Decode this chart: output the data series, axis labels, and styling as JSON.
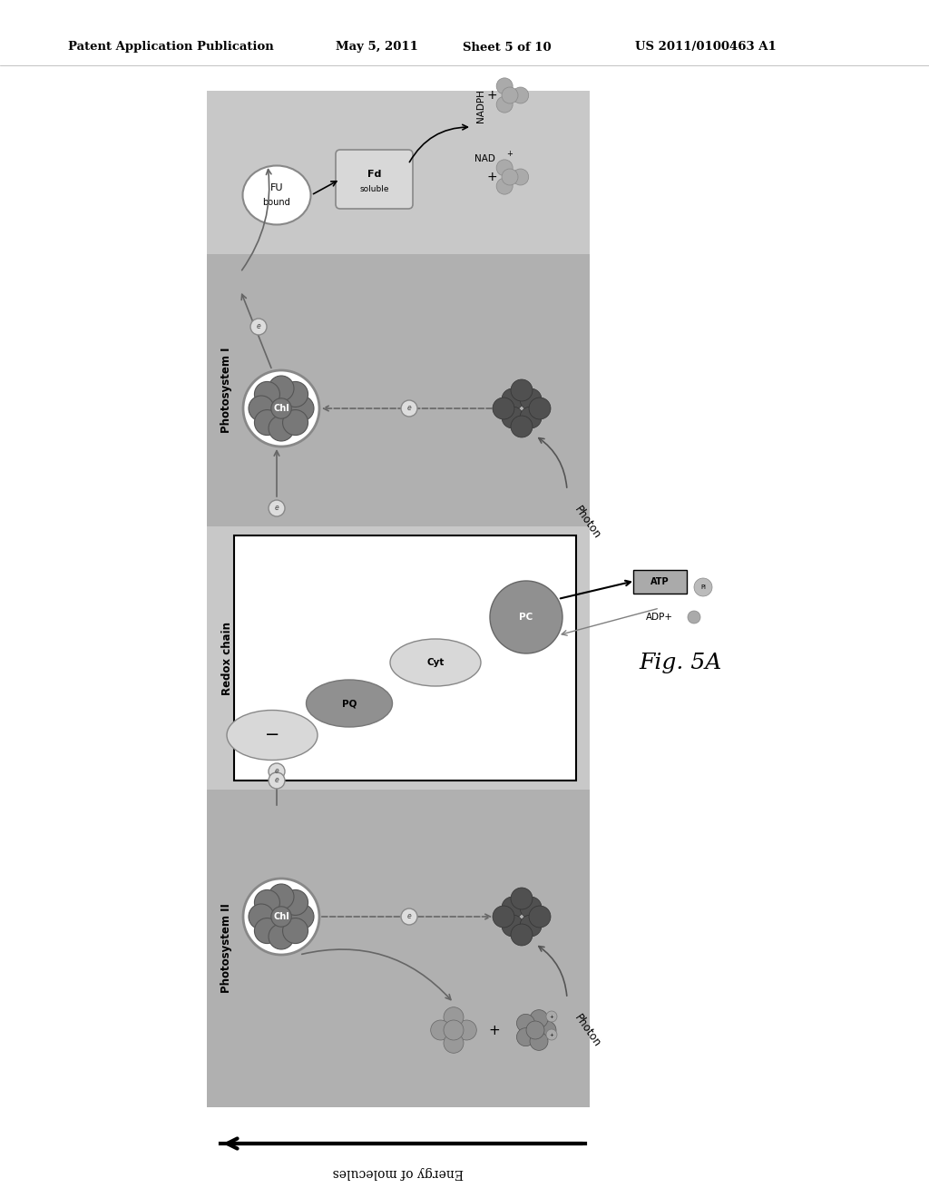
{
  "bg_color": "#ffffff",
  "header_text": "Patent Application Publication",
  "header_date": "May 5, 2011",
  "header_sheet": "Sheet 5 of 10",
  "header_patent": "US 2011/0100463 A1",
  "fig_label": "Fig. 5A",
  "diag_gray": "#c8c8c8",
  "band_gray": "#b0b0b0",
  "redox_white": "#ffffff",
  "dark_cluster": "#505050",
  "medium_gray": "#909090",
  "light_ellipse": "#d8d8d8",
  "chl_inner": "#787878"
}
